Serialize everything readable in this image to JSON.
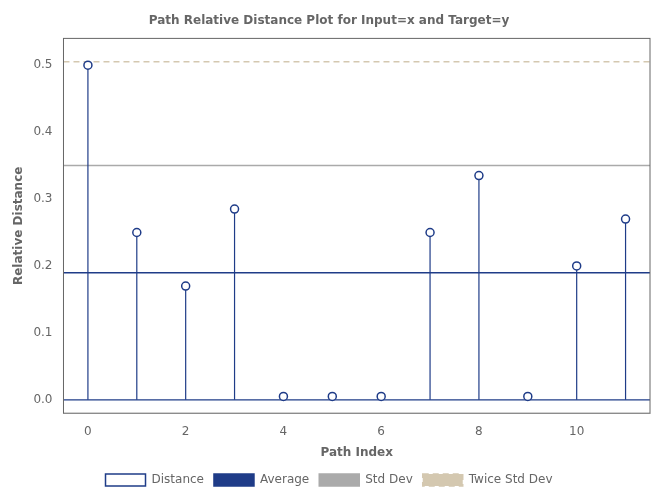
{
  "chart_data": {
    "type": "lollipop",
    "title": "Path Relative Distance Plot for Input=x and Target=y",
    "xlabel": "Path Index",
    "ylabel": "Relative Distance",
    "x": [
      0,
      1,
      2,
      3,
      4,
      5,
      6,
      7,
      8,
      9,
      10,
      11
    ],
    "series": [
      {
        "name": "Distance",
        "color": "#1f3c88",
        "marker": "circle",
        "values": [
          0.5,
          0.25,
          0.17,
          0.285,
          0.005,
          0.005,
          0.005,
          0.25,
          0.335,
          0.005,
          0.2,
          0.27
        ]
      },
      {
        "name": "Average",
        "type": "hline",
        "color": "#1f3c88",
        "line_style": "solid",
        "value": 0.19
      },
      {
        "name": "Std Dev",
        "type": "hline",
        "color": "#aaaaaa",
        "line_style": "solid",
        "value": 0.35
      },
      {
        "name": "Twice Std Dev",
        "type": "hline",
        "color": "#d4c8b0",
        "line_style": "dashed",
        "value": 0.505
      }
    ],
    "xlim": [
      -0.5,
      11.5
    ],
    "ylim": [
      -0.02,
      0.54
    ],
    "xticks": [
      0,
      2,
      4,
      6,
      8,
      10
    ],
    "yticks": [
      {
        "value": 0,
        "label": "0.0"
      },
      0.1,
      0.2,
      0.3,
      0.4,
      0.5
    ],
    "grid": false,
    "legend": "bottom"
  }
}
